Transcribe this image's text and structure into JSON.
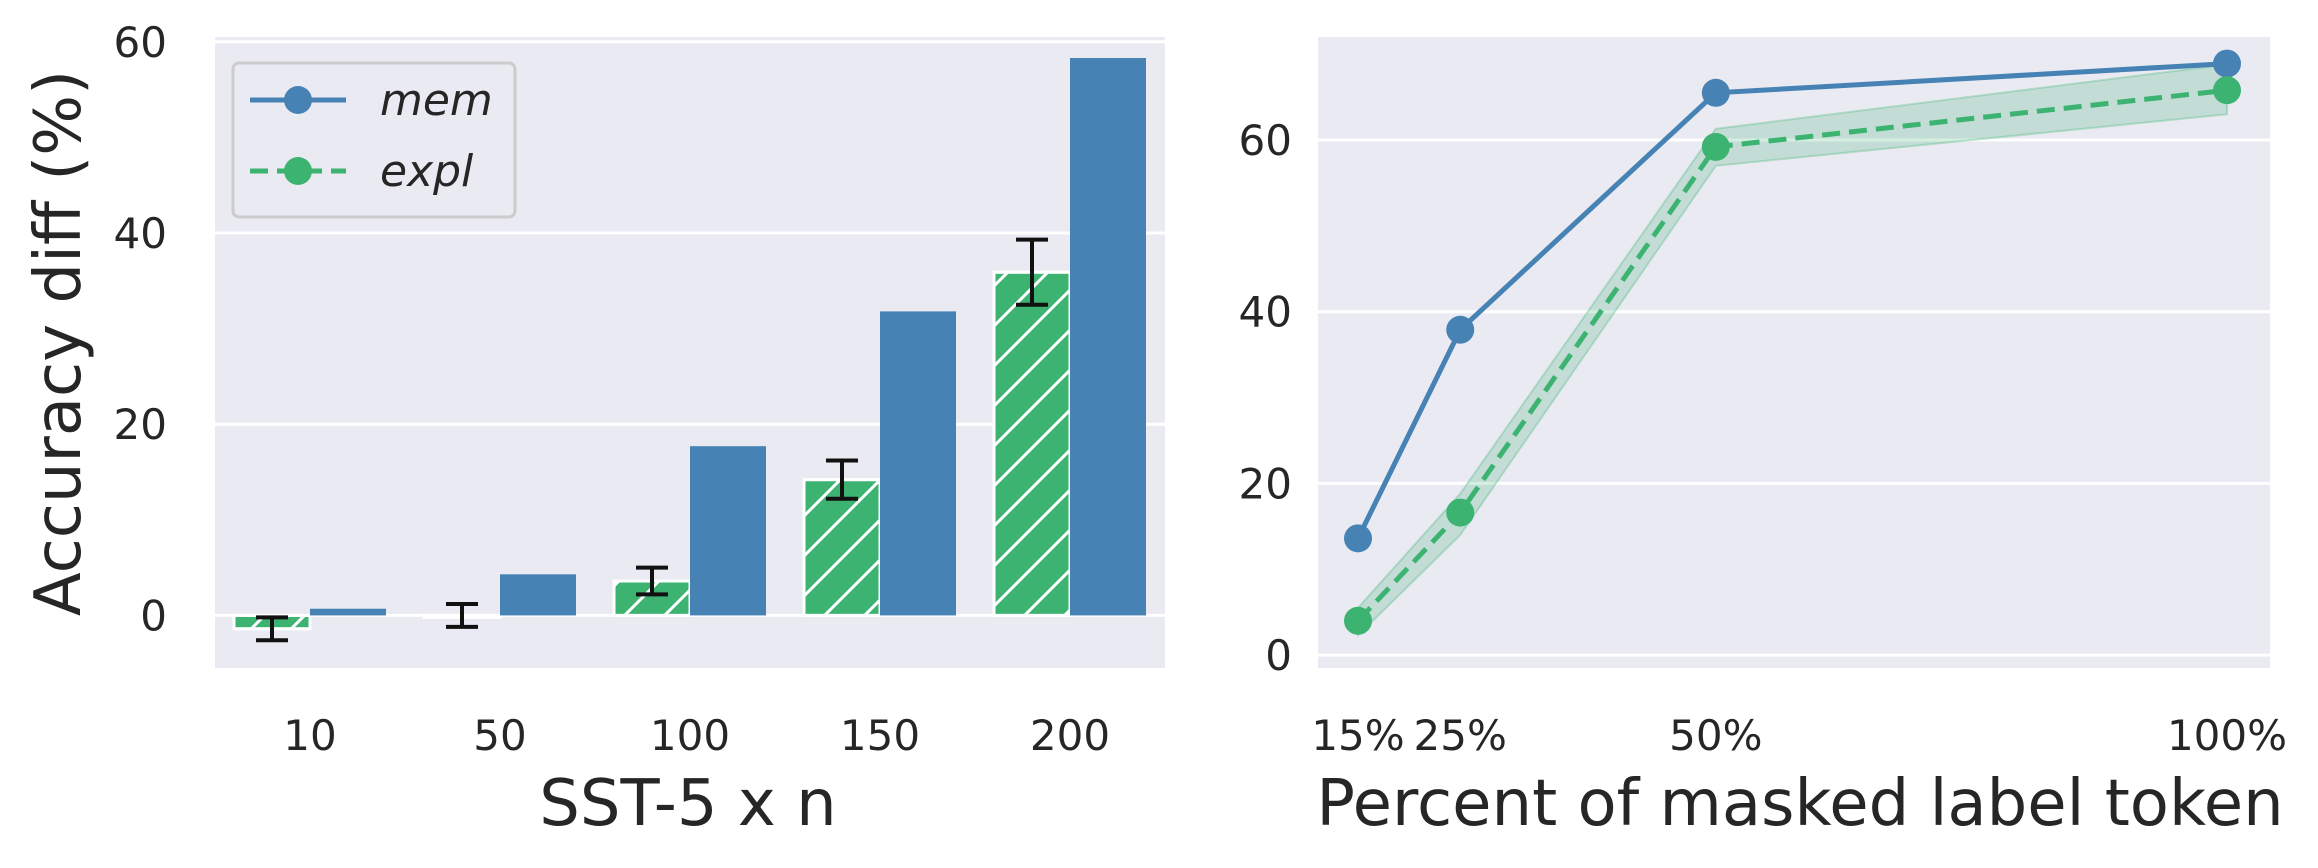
{
  "chart_data": [
    {
      "type": "bar",
      "xlabel": "SST-5 x n",
      "ylabel": "Accuracy diff (%)",
      "categories": [
        "10",
        "50",
        "100",
        "150",
        "200"
      ],
      "ylim": [
        -5.5,
        60.5
      ],
      "yticks": [
        0,
        20,
        40,
        60
      ],
      "grid": true,
      "legend": "upper-left",
      "series": [
        {
          "name": "mem",
          "color": "#4682b4",
          "hatch": false,
          "values": [
            0.7,
            4.3,
            17.7,
            31.8,
            58.3
          ],
          "errors": null
        },
        {
          "name": "expl",
          "color": "#3cb371",
          "hatch": true,
          "values": [
            -1.4,
            0.0,
            3.6,
            14.2,
            35.9
          ],
          "errors": [
            1.2,
            1.2,
            1.4,
            2.0,
            3.4
          ]
        }
      ]
    },
    {
      "type": "line",
      "xlabel": "Percent of masked label token",
      "ylabel": "",
      "x": [
        15,
        25,
        50,
        100
      ],
      "xticklabels": [
        "15%",
        "25%",
        "50%",
        "100%"
      ],
      "ylim": [
        -1.5,
        72
      ],
      "yticks": [
        0,
        20,
        40,
        60
      ],
      "grid": true,
      "series": [
        {
          "name": "mem",
          "color": "#4682b4",
          "dashed": false,
          "values": [
            13.6,
            37.9,
            65.5,
            68.9
          ]
        },
        {
          "name": "expl",
          "color": "#3cb371",
          "dashed": true,
          "values": [
            4.0,
            16.6,
            59.2,
            65.8
          ],
          "band_low": [
            2.3,
            14.0,
            57.0,
            63.0
          ],
          "band_high": [
            5.5,
            18.8,
            61.3,
            68.8
          ]
        }
      ]
    }
  ]
}
